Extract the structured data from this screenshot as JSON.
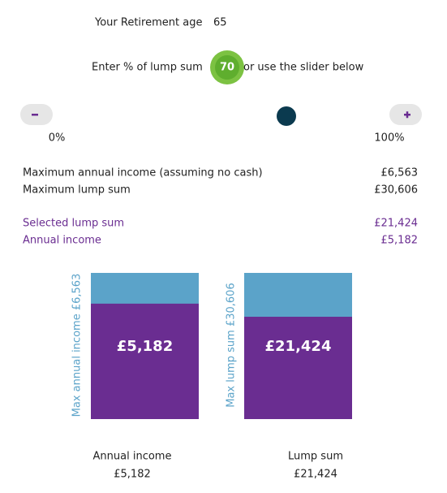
{
  "retirement": {
    "label": "Your Retirement age",
    "age": 65
  },
  "lump_sum": {
    "prompt": "Enter % of lump sum",
    "percent": 70,
    "hint": "or use the slider below"
  },
  "slider": {
    "min": {
      "value": 0,
      "label": "0%"
    },
    "max": {
      "value": 100,
      "label": "100%"
    }
  },
  "summary": [
    {
      "label": "Maximum annual income (assuming no cash)",
      "value": 6563,
      "value_label": "£6,563"
    },
    {
      "label": "Maximum lump sum",
      "value": 30606,
      "value_label": "£30,606"
    },
    {
      "label": "Selected lump sum",
      "value": 21424,
      "value_label": "£21,424"
    },
    {
      "label": "Annual income",
      "value": 5182,
      "value_label": "£5,182"
    }
  ],
  "charts": [
    {
      "axis_label": "Max annual income £6,563",
      "caption": "Annual income"
    },
    {
      "axis_label": "Max lump sum £30,606",
      "caption": "Lump sum"
    }
  ]
}
